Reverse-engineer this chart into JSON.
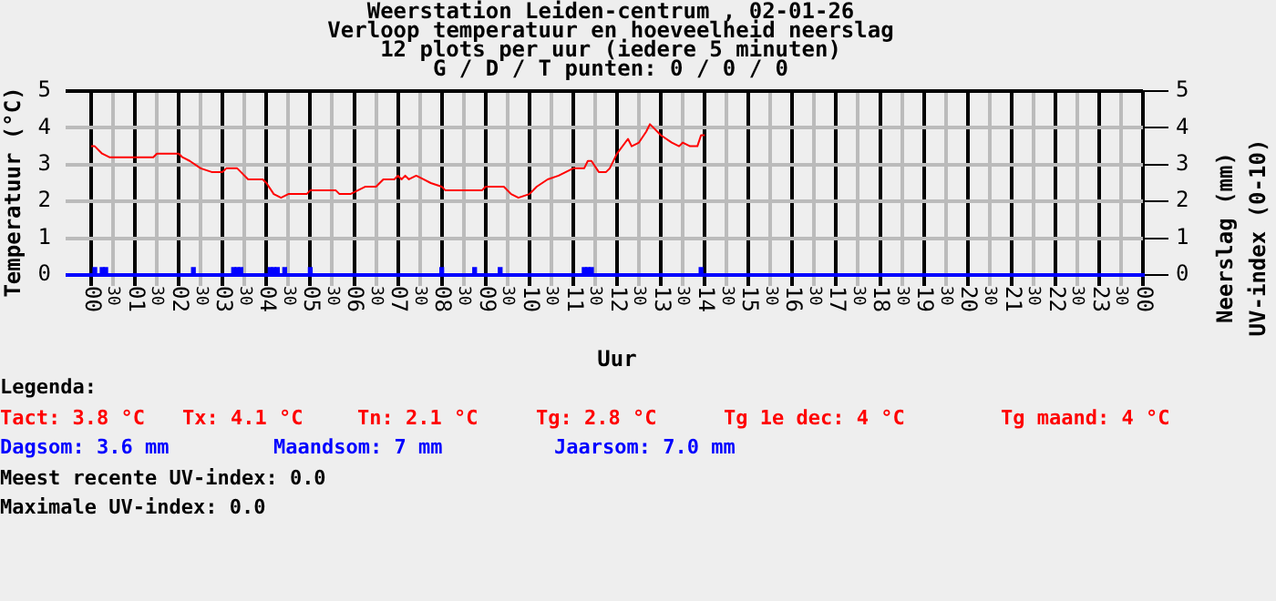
{
  "chart_data": {
    "type": "line",
    "title": "Weerstation Leiden-centrum , 02-01-26",
    "subtitle": "Verloop temperatuur en hoeveelheid neerslag\n12 plots per uur (iedere 5 minuten)\nG / D / T punten: 0 / 0 / 0",
    "xlabel": "Uur",
    "ylabel": "Temperatuur (°C)",
    "y2label": "Neerslag (mm)\nUV-index (0-10)",
    "xlim": [
      "--01-02T00:00",
      "--01-03T00:00"
    ],
    "xticks": [
      {
        "value": "--01-02T00:00",
        "label": "00"
      },
      {
        "value": "--01-02T00:30",
        "label": "30"
      },
      {
        "value": "--01-02T01:00",
        "label": "01"
      },
      {
        "value": "--01-02T01:30",
        "label": "30"
      },
      {
        "value": "--01-02T02:00",
        "label": "02"
      },
      {
        "value": "--01-02T02:30",
        "label": "30"
      },
      {
        "value": "--01-02T03:00",
        "label": "03"
      },
      {
        "value": "--01-02T03:30",
        "label": "30"
      },
      {
        "value": "--01-02T04:00",
        "label": "04"
      },
      {
        "value": "--01-02T04:30",
        "label": "30"
      },
      {
        "value": "--01-02T05:00",
        "label": "05"
      },
      {
        "value": "--01-02T05:30",
        "label": "30"
      },
      {
        "value": "--01-02T06:00",
        "label": "06"
      },
      {
        "value": "--01-02T06:30",
        "label": "30"
      },
      {
        "value": "--01-02T07:00",
        "label": "07"
      },
      {
        "value": "--01-02T07:30",
        "label": "30"
      },
      {
        "value": "--01-02T08:00",
        "label": "08"
      },
      {
        "value": "--01-02T08:30",
        "label": "30"
      },
      {
        "value": "--01-02T09:00",
        "label": "09"
      },
      {
        "value": "--01-02T09:30",
        "label": "30"
      },
      {
        "value": "--01-02T10:00",
        "label": "10"
      },
      {
        "value": "--01-02T10:30",
        "label": "30"
      },
      {
        "value": "--01-02T11:00",
        "label": "11"
      },
      {
        "value": "--01-02T11:30",
        "label": "30"
      },
      {
        "value": "--01-02T12:00",
        "label": "12"
      },
      {
        "value": "--01-02T12:30",
        "label": "30"
      },
      {
        "value": "--01-02T13:00",
        "label": "13"
      },
      {
        "value": "--01-02T13:30",
        "label": "30"
      },
      {
        "value": "--01-02T14:00",
        "label": "14"
      },
      {
        "value": "--01-02T14:30",
        "label": "30"
      },
      {
        "value": "--01-02T15:00",
        "label": "15"
      },
      {
        "value": "--01-02T15:30",
        "label": "30"
      },
      {
        "value": "--01-02T16:00",
        "label": "16"
      },
      {
        "value": "--01-02T16:30",
        "label": "30"
      },
      {
        "value": "--01-02T17:00",
        "label": "17"
      },
      {
        "value": "--01-02T17:30",
        "label": "30"
      },
      {
        "value": "--01-02T18:00",
        "label": "18"
      },
      {
        "value": "--01-02T18:30",
        "label": "30"
      },
      {
        "value": "--01-02T19:00",
        "label": "19"
      },
      {
        "value": "--01-02T19:30",
        "label": "30"
      },
      {
        "value": "--01-02T20:00",
        "label": "20"
      },
      {
        "value": "--01-02T20:30",
        "label": "30"
      },
      {
        "value": "--01-02T21:00",
        "label": "21"
      },
      {
        "value": "--01-02T21:30",
        "label": "30"
      },
      {
        "value": "--01-02T22:00",
        "label": "22"
      },
      {
        "value": "--01-02T22:30",
        "label": "30"
      },
      {
        "value": "--01-02T23:00",
        "label": "23"
      },
      {
        "value": "--01-02T23:30",
        "label": "30"
      },
      {
        "value": "--01-03T00:00",
        "label": "00"
      }
    ],
    "ylim": [
      0,
      5
    ],
    "yticks": [
      0,
      1,
      2,
      3,
      4,
      5
    ],
    "y2lim": [
      0,
      5
    ],
    "y2ticks": [
      0,
      1,
      2,
      3,
      4,
      5
    ],
    "grid": true,
    "legend": false,
    "marker": "none",
    "series": [
      {
        "color": "#ff0000",
        "x": [
          "--01-02T00:00",
          "--01-02T00:05",
          "--01-02T00:15",
          "--01-02T00:25",
          "--01-02T01:25",
          "--01-02T01:30",
          "--01-02T02:00",
          "--01-02T02:05",
          "--01-02T02:15",
          "--01-02T02:30",
          "--01-02T02:45",
          "--01-02T03:00",
          "--01-02T03:05",
          "--01-02T03:20",
          "--01-02T03:25",
          "--01-02T03:35",
          "--01-02T03:55",
          "--01-02T04:00",
          "--01-02T04:10",
          "--01-02T04:20",
          "--01-02T04:30",
          "--01-02T04:55",
          "--01-02T05:00",
          "--01-02T05:35",
          "--01-02T05:40",
          "--01-02T05:55",
          "--01-02T06:05",
          "--01-02T06:15",
          "--01-02T06:30",
          "--01-02T06:40",
          "--01-02T06:55",
          "--01-02T07:00",
          "--01-02T07:05",
          "--01-02T07:10",
          "--01-02T07:15",
          "--01-02T07:25",
          "--01-02T07:35",
          "--01-02T07:45",
          "--01-02T08:00",
          "--01-02T08:05",
          "--01-02T08:55",
          "--01-02T09:00",
          "--01-02T09:25",
          "--01-02T09:35",
          "--01-02T09:45",
          "--01-02T10:00",
          "--01-02T10:10",
          "--01-02T10:25",
          "--01-02T10:40",
          "--01-02T10:50",
          "--01-02T11:00",
          "--01-02T11:15",
          "--01-02T11:20",
          "--01-02T11:25",
          "--01-02T11:35",
          "--01-02T11:45",
          "--01-02T11:50",
          "--01-02T12:00",
          "--01-02T12:15",
          "--01-02T12:20",
          "--01-02T12:30",
          "--01-02T12:40",
          "--01-02T12:45",
          "--01-02T12:50",
          "--01-02T13:00",
          "--01-02T13:15",
          "--01-02T13:25",
          "--01-02T13:30",
          "--01-02T13:40",
          "--01-02T13:50",
          "--01-02T13:55",
          "--01-02T14:00"
        ],
        "values": [
          3.5,
          3.5,
          3.3,
          3.2,
          3.2,
          3.3,
          3.3,
          3.2,
          3.1,
          2.9,
          2.8,
          2.8,
          2.9,
          2.9,
          2.8,
          2.6,
          2.6,
          2.5,
          2.2,
          2.1,
          2.2,
          2.2,
          2.3,
          2.3,
          2.2,
          2.2,
          2.3,
          2.4,
          2.4,
          2.6,
          2.6,
          2.7,
          2.6,
          2.7,
          2.6,
          2.7,
          2.6,
          2.5,
          2.4,
          2.3,
          2.3,
          2.4,
          2.4,
          2.2,
          2.1,
          2.2,
          2.4,
          2.6,
          2.7,
          2.8,
          2.9,
          2.9,
          3.1,
          3.1,
          2.8,
          2.8,
          2.9,
          3.3,
          3.7,
          3.5,
          3.6,
          3.9,
          4.1,
          4.0,
          3.8,
          3.6,
          3.5,
          3.6,
          3.5,
          3.5,
          3.8,
          3.8
        ]
      },
      {
        "type": "bar",
        "color": "#0000ff",
        "x": [
          "--01-02T00:05",
          "--01-02T00:15",
          "--01-02T00:20",
          "--01-02T02:20",
          "--01-02T03:15",
          "--01-02T03:20",
          "--01-02T03:25",
          "--01-02T04:05",
          "--01-02T04:10",
          "--01-02T04:15",
          "--01-02T04:25",
          "--01-02T05:00",
          "--01-02T08:00",
          "--01-02T08:45",
          "--01-02T09:20",
          "--01-02T11:15",
          "--01-02T11:20",
          "--01-02T11:25",
          "--01-02T13:55"
        ],
        "values": [
          0.2,
          0.2,
          0.2,
          0.2,
          0.2,
          0.2,
          0.2,
          0.2,
          0.2,
          0.2,
          0.2,
          0.2,
          0.2,
          0.2,
          0.2,
          0.2,
          0.2,
          0.2,
          0.2
        ]
      }
    ],
    "annotations": [
      "Legenda:",
      "Tact: 3.8 °C",
      "Tx: 4.1 °C",
      "Tn: 2.1 °C",
      "Tg: 2.8 °C",
      "Tg 1e dec: 4 °C",
      "Tg maand: 4 °C",
      "Dagsom: 3.6 mm",
      "Maandsom: 7 mm",
      "Jaarsom: 7.0 mm",
      "Meest recente UV-index: 0.0",
      "Maximale UV-index: 0.0"
    ]
  }
}
